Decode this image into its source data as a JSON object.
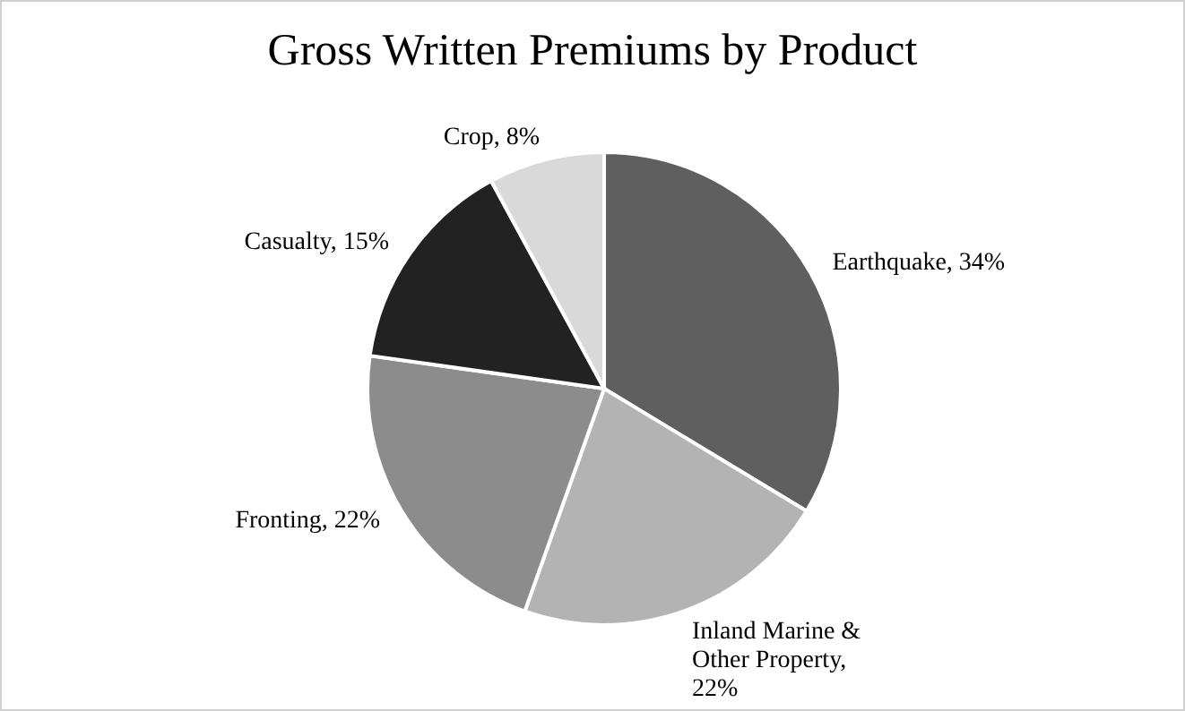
{
  "chart_data": {
    "type": "pie",
    "title": "Gross Written Premiums by Product",
    "categories": [
      "Earthquake",
      "Inland Marine & Other Property",
      "Fronting",
      "Casualty",
      "Crop"
    ],
    "values": [
      34,
      22,
      22,
      15,
      8
    ],
    "value_labels": [
      ", 34%",
      ", 22%",
      ", 22%",
      ", 15%",
      ", 8%"
    ],
    "colors": [
      "#5f5f5f",
      "#b3b3b3",
      "#8c8c8c",
      "#222222",
      "#d9d9d9"
    ],
    "legend": false
  }
}
